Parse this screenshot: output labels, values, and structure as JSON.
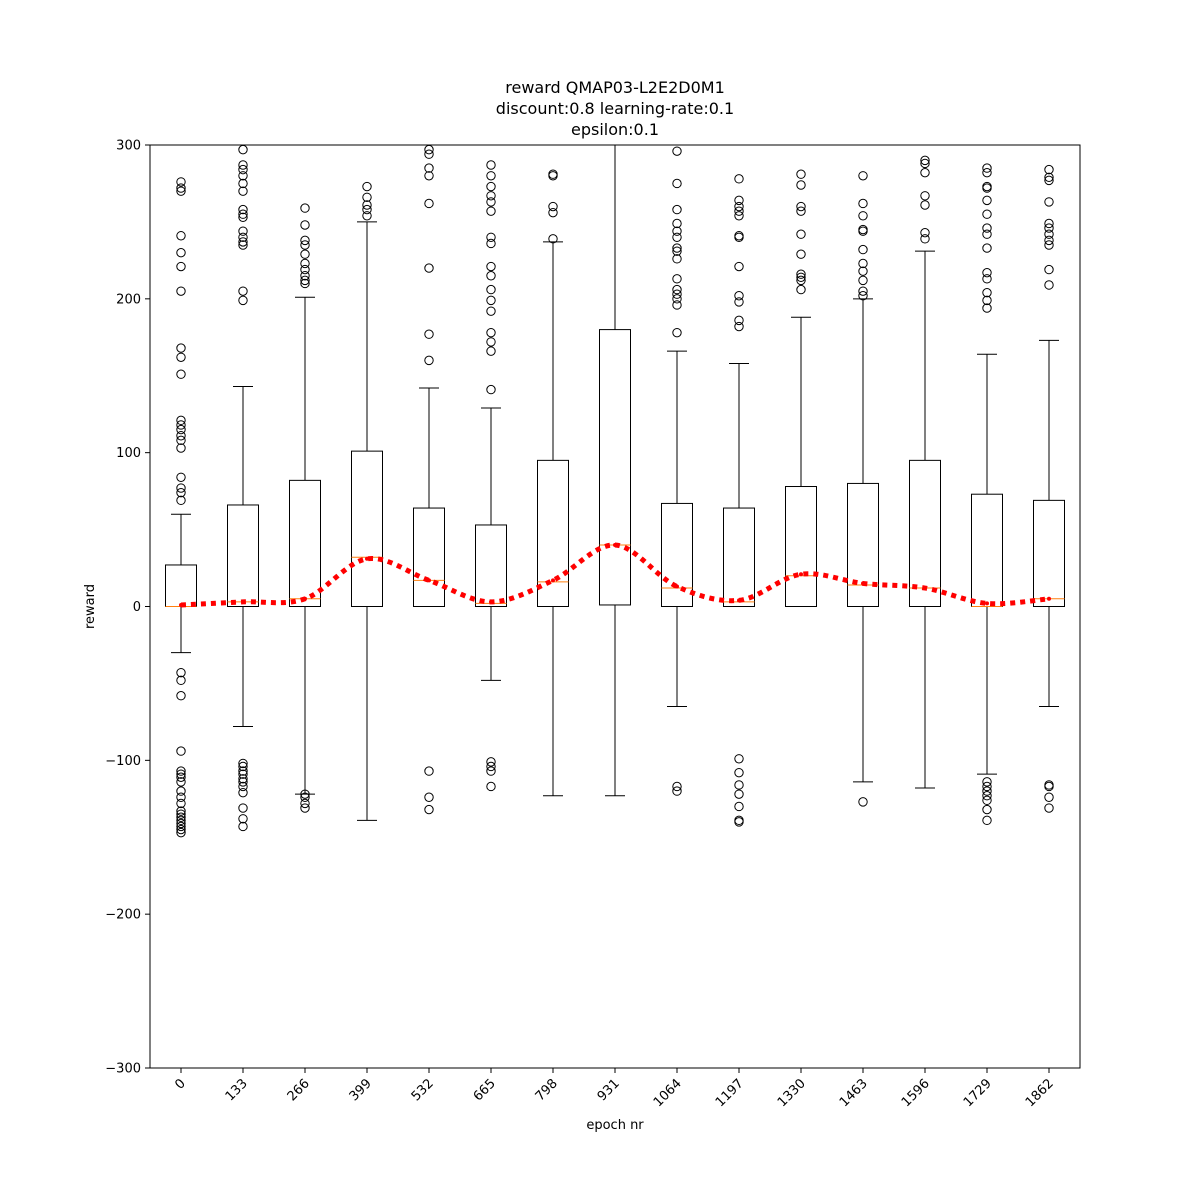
{
  "chart_data": {
    "type": "boxplot",
    "title_lines": [
      "reward QMAP03-L2E2D0M1",
      "discount:0.8 learning-rate:0.1",
      "epsilon:0.1"
    ],
    "xlabel": "epoch nr",
    "ylabel": "reward",
    "ylim": [
      -300,
      300
    ],
    "yticks": [
      -300,
      -200,
      -100,
      0,
      100,
      200,
      300
    ],
    "ytick_labels": [
      "−300",
      "−200",
      "−100",
      "0",
      "100",
      "200",
      "300"
    ],
    "categories": [
      "0",
      "133",
      "266",
      "399",
      "532",
      "665",
      "798",
      "931",
      "1064",
      "1197",
      "1330",
      "1463",
      "1596",
      "1729",
      "1862"
    ],
    "boxes": [
      {
        "q1": 0,
        "median": 0,
        "q3": 27,
        "whislo": -30,
        "whishi": 60,
        "fliers": [
          -147,
          -145,
          -143,
          -141,
          -139,
          -137,
          -135,
          -133,
          -128,
          -124,
          -120,
          -114,
          -111,
          -109,
          -107,
          -94,
          -58,
          -48,
          -43,
          69,
          74,
          77,
          84,
          103,
          108,
          111,
          115,
          118,
          121,
          151,
          162,
          168,
          205,
          221,
          230,
          241,
          270,
          272,
          276
        ]
      },
      {
        "q1": 0,
        "median": 3,
        "q3": 66,
        "whislo": -78,
        "whishi": 143,
        "fliers": [
          -143,
          -138,
          -131,
          -121,
          -117,
          -114,
          -112,
          -109,
          -107,
          -104,
          -102,
          199,
          205,
          235,
          237,
          240,
          244,
          253,
          255,
          258,
          270,
          275,
          280,
          284,
          287,
          297
        ]
      },
      {
        "q1": 0,
        "median": 5,
        "q3": 82,
        "whislo": -122,
        "whishi": 201,
        "fliers": [
          -131,
          -128,
          -124,
          -122,
          210,
          212,
          215,
          219,
          223,
          229,
          235,
          238,
          248,
          259
        ]
      },
      {
        "q1": 0,
        "median": 32,
        "q3": 101,
        "whislo": -139,
        "whishi": 250,
        "fliers": [
          254,
          258,
          261,
          266,
          273
        ]
      },
      {
        "q1": 0,
        "median": 17,
        "q3": 64,
        "whislo": 0,
        "whishi": 142,
        "fliers": [
          -132,
          -124,
          -107,
          160,
          177,
          220,
          262,
          280,
          285,
          294,
          297
        ]
      },
      {
        "q1": 0,
        "median": 2,
        "q3": 53,
        "whislo": -48,
        "whishi": 129,
        "fliers": [
          -117,
          -107,
          -104,
          -101,
          141,
          166,
          172,
          178,
          192,
          199,
          206,
          215,
          221,
          236,
          240,
          257,
          263,
          267,
          273,
          280,
          287
        ]
      },
      {
        "q1": 0,
        "median": 16,
        "q3": 95,
        "whislo": -123,
        "whishi": 237,
        "fliers": [
          239,
          256,
          260,
          280,
          281
        ]
      },
      {
        "q1": 1,
        "median": 40,
        "q3": 180,
        "whislo": -123,
        "whishi": 300,
        "fliers": []
      },
      {
        "q1": 0,
        "median": 12,
        "q3": 67,
        "whislo": -65,
        "whishi": 166,
        "fliers": [
          -120,
          -117,
          178,
          196,
          200,
          203,
          206,
          213,
          226,
          231,
          233,
          240,
          244,
          249,
          258,
          275,
          296
        ]
      },
      {
        "q1": 0,
        "median": 3,
        "q3": 64,
        "whislo": 0,
        "whishi": 158,
        "fliers": [
          -140,
          -139,
          -130,
          -122,
          -116,
          -108,
          -99,
          182,
          186,
          198,
          202,
          221,
          240,
          241,
          254,
          257,
          260,
          264,
          278
        ]
      },
      {
        "q1": 0,
        "median": 20,
        "q3": 78,
        "whislo": 0,
        "whishi": 188,
        "fliers": [
          206,
          212,
          214,
          216,
          229,
          242,
          257,
          260,
          274,
          281
        ]
      },
      {
        "q1": 0,
        "median": 14,
        "q3": 80,
        "whislo": -114,
        "whishi": 200,
        "fliers": [
          -127,
          202,
          205,
          212,
          218,
          223,
          232,
          244,
          245,
          254,
          262,
          280,
          301
        ]
      },
      {
        "q1": 0,
        "median": 12,
        "q3": 95,
        "whislo": -118,
        "whishi": 231,
        "fliers": [
          239,
          243,
          261,
          267,
          282,
          288,
          290
        ]
      },
      {
        "q1": 0,
        "median": 0,
        "q3": 73,
        "whislo": -109,
        "whishi": 164,
        "fliers": [
          -139,
          -132,
          -126,
          -123,
          -120,
          -117,
          -114,
          194,
          199,
          204,
          213,
          217,
          233,
          242,
          246,
          255,
          264,
          272,
          273,
          282,
          285
        ]
      },
      {
        "q1": 0,
        "median": 5,
        "q3": 69,
        "whislo": -65,
        "whishi": 173,
        "fliers": [
          -131,
          -124,
          -117,
          -116,
          209,
          219,
          235,
          238,
          242,
          246,
          249,
          263,
          277,
          279,
          284
        ]
      }
    ],
    "mean_line": {
      "values": [
        1,
        3,
        5,
        31,
        17,
        3,
        17,
        40,
        13,
        4,
        21,
        15,
        12,
        2,
        5
      ],
      "color": "#ff0000",
      "style": "dotted"
    },
    "colors": {
      "median": "#ff7f0e",
      "mean_line": "#ff0000",
      "box": "#000000"
    },
    "grid": false,
    "tick_rotation_deg": -45
  }
}
